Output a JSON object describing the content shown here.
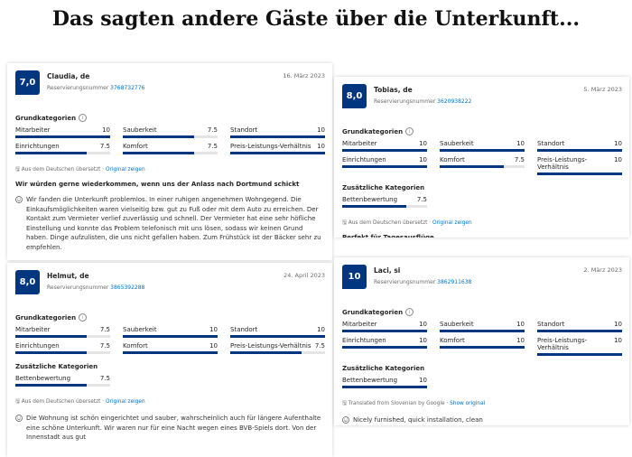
{
  "title": "Das sagten andere Gäste über die Unterkunft...",
  "reviews": [
    {
      "score": "7,0",
      "name": "Claudia, de",
      "date": "16. März 2023",
      "reservation_label": "Reservierungsnummer",
      "reservation_number": "3768732776",
      "basic_heading": "Grundkategorien",
      "basic": [
        {
          "label": "Mitarbeiter",
          "value": 10
        },
        {
          "label": "Sauberkeit",
          "value": 7.5
        },
        {
          "label": "Standort",
          "value": 10
        },
        {
          "label": "Einrichtungen",
          "value": 7.5
        },
        {
          "label": "Komfort",
          "value": 7.5
        },
        {
          "label": "Preis-Leistungs-Verhältnis",
          "value": 10
        }
      ],
      "translation": "Aus dem Deutschen übersetzt",
      "original_link": "Original zeigen",
      "headline": "Wir würden gerne wiederkommen, wenn uns der Anlass nach Dortmund schickt",
      "text": "Wir fanden die Unterkunft problemlos. In einer ruhigen angenehmen Wohngegend. Die Einkaufsmöglichkeiten waren vielseitig bzw. gut zu Fuß oder mit dem Auto zu erreichen. Der Kontakt zum Vermieter verlief zuverlässig und schnell. Der Vermieter hat eine sehr höfliche Einstellung und konnte das Problem telefonisch mit uns lösen, sodass wir keinen Grund haben. Dinge aufzulisten, die uns nicht gefallen haben. Zum Frühstück ist der Bäcker sehr zu empfehlen."
    },
    {
      "score": "8,0",
      "name": "Tobias, de",
      "date": "5. März 2023",
      "reservation_label": "Reservierungsnummer",
      "reservation_number": "3620938222",
      "basic_heading": "Grundkategorien",
      "basic": [
        {
          "label": "Mitarbeiter",
          "value": 10
        },
        {
          "label": "Sauberkeit",
          "value": 10
        },
        {
          "label": "Standort",
          "value": 10
        },
        {
          "label": "Einrichtungen",
          "value": 10
        },
        {
          "label": "Komfort",
          "value": 7.5
        },
        {
          "label": "Preis-Leistungs-Verhältnis",
          "value": 10
        }
      ],
      "extra_heading": "Zusätzliche Kategorien",
      "extra": [
        {
          "label": "Bettenbewertung",
          "value": 7.5
        }
      ],
      "translation": "Aus dem Deutschen übersetzt",
      "original_link": "Original zeigen",
      "headline": "Perfekt für Tagesausflüge."
    },
    {
      "score": "8,0",
      "name": "Helmut, de",
      "date": "24. April 2023",
      "reservation_label": "Reservierungsnummer",
      "reservation_number": "3865392288",
      "basic_heading": "Grundkategorien",
      "basic": [
        {
          "label": "Mitarbeiter",
          "value": 7.5
        },
        {
          "label": "Sauberkeit",
          "value": 10
        },
        {
          "label": "Standort",
          "value": 10
        },
        {
          "label": "Einrichtungen",
          "value": 7.5
        },
        {
          "label": "Komfort",
          "value": 10
        },
        {
          "label": "Preis-Leistungs-Verhältnis",
          "value": 7.5
        }
      ],
      "extra_heading": "Zusätzliche Kategorien",
      "extra": [
        {
          "label": "Bettenbewertung",
          "value": 7.5
        }
      ],
      "translation": "Aus dem Deutschen übersetzt",
      "original_link": "Original zeigen",
      "text": "Die Wohnung ist schön eingerichtet und sauber, wahrscheinlich auch für längere Aufenthalte eine schöne Unterkunft. Wir waren nur für eine Nacht wegen eines BVB-Spiels dort. Von der Innenstadt aus gut"
    },
    {
      "score": "10",
      "name": "Laci, si",
      "date": "2. März 2023",
      "reservation_label": "Reservierungsnummer",
      "reservation_number": "3862911638",
      "basic_heading": "Grundkategorien",
      "basic": [
        {
          "label": "Mitarbeiter",
          "value": 10
        },
        {
          "label": "Sauberkeit",
          "value": 10
        },
        {
          "label": "Standort",
          "value": 10
        },
        {
          "label": "Einrichtungen",
          "value": 10
        },
        {
          "label": "Komfort",
          "value": 10
        },
        {
          "label": "Preis-Leistungs-Verhältnis",
          "value": 10
        }
      ],
      "extra_heading": "Zusätzliche Kategorien",
      "extra": [
        {
          "label": "Bettenbewertung",
          "value": 10
        }
      ],
      "translation": "Translated from Slovenian by Google",
      "original_link": "Show original",
      "text": "Nicely furnished, quick installation, clean"
    }
  ]
}
